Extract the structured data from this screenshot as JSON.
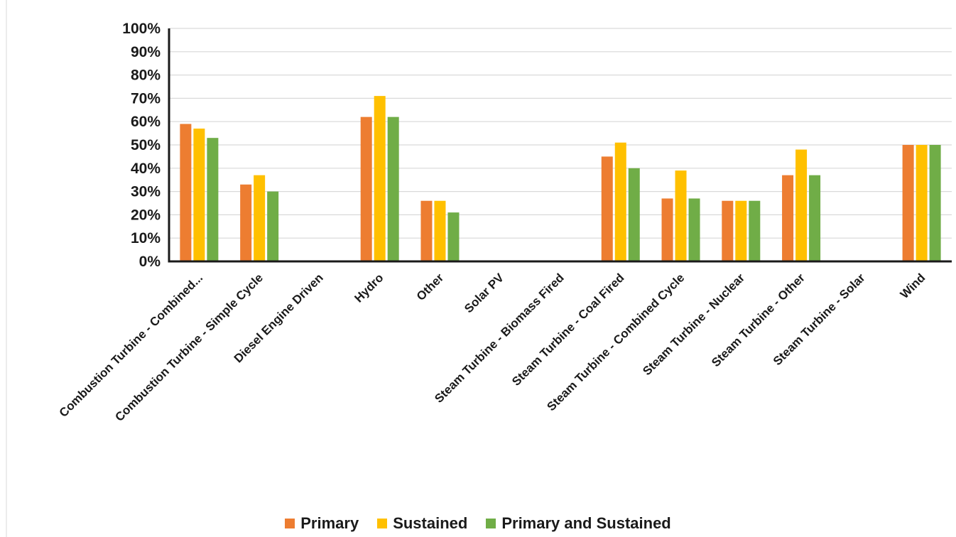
{
  "chart_data": {
    "type": "bar",
    "categories": [
      "Combustion Turbine - Combined...",
      "Combustion Turbine - Simple Cycle",
      "Diesel Engine Driven",
      "Hydro",
      "Other",
      "Solar PV",
      "Steam Turbine - Biomass Fired",
      "Steam Turbine - Coal Fired",
      "Steam Turbine - Combined Cycle",
      "Steam Turbine - Nuclear",
      "Steam Turbine - Other",
      "Steam Turbine - Solar",
      "Wind"
    ],
    "series": [
      {
        "name": "Primary",
        "color": "#ED7D31",
        "values": [
          59,
          33,
          0,
          62,
          26,
          0,
          0,
          45,
          27,
          26,
          37,
          0,
          50
        ]
      },
      {
        "name": "Sustained",
        "color": "#FFC000",
        "values": [
          57,
          37,
          0,
          71,
          26,
          0,
          0,
          51,
          39,
          26,
          48,
          0,
          50
        ]
      },
      {
        "name": "Primary and Sustained",
        "color": "#70AD47",
        "values": [
          53,
          30,
          0,
          62,
          21,
          0,
          0,
          40,
          27,
          26,
          37,
          0,
          50
        ]
      }
    ],
    "yticks": [
      "0%",
      "10%",
      "20%",
      "30%",
      "40%",
      "50%",
      "60%",
      "70%",
      "80%",
      "90%",
      "100%"
    ],
    "ylim": [
      0,
      100
    ],
    "grid": true,
    "legend_position": "bottom",
    "title": "",
    "xlabel": "",
    "ylabel": ""
  }
}
